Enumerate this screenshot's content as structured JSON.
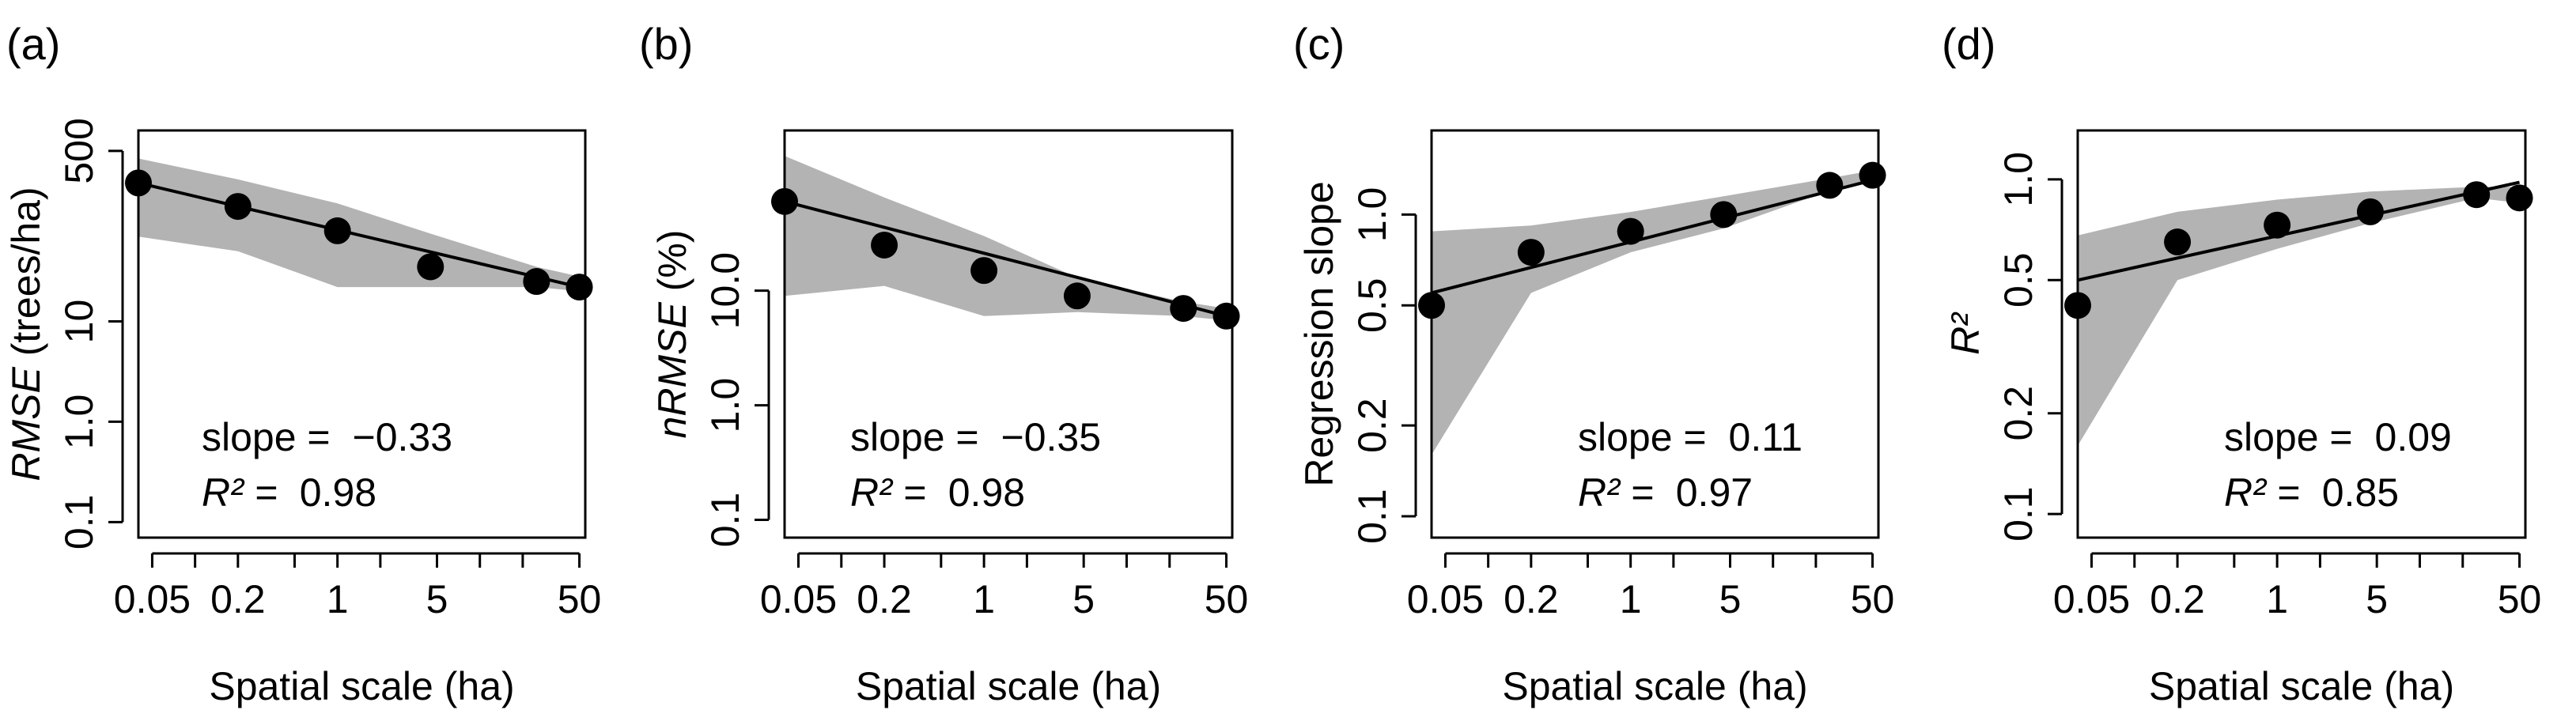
{
  "figure": {
    "xlabel": "Spatial scale (ha)",
    "xticks": [
      "0.05",
      "0.2",
      "1",
      "5",
      "50"
    ],
    "xticks_values": [
      0.05,
      0.2,
      1,
      5,
      50
    ]
  },
  "chart_data": [
    {
      "panel_label": "(a)",
      "type": "scatter",
      "log_x": true,
      "log_y": true,
      "ylabel_italic": "RMSE",
      "ylabel_rest": " (trees/ha)",
      "xlabel": "Spatial scale (ha)",
      "xlim": [
        0.04,
        55
      ],
      "ylim": [
        0.07,
        800
      ],
      "yticks": [
        "0.1",
        "1.0",
        "10",
        "500"
      ],
      "yticks_values": [
        0.1,
        1.0,
        10,
        500
      ],
      "x": [
        0.04,
        0.2,
        1,
        4.5,
        25,
        50
      ],
      "y": [
        240,
        140,
        80,
        35,
        25,
        22
      ],
      "band_upper": [
        420,
        260,
        150,
        75,
        35,
        28
      ],
      "band_lower": [
        70,
        50,
        22,
        22,
        22,
        20
      ],
      "fit_endpoints": [
        [
          0.04,
          240
        ],
        [
          50,
          22
        ]
      ],
      "slope_label": "slope = ",
      "slope": "−0.33",
      "r2_label": "R² = ",
      "r2": "0.98"
    },
    {
      "panel_label": "(b)",
      "type": "scatter",
      "log_x": true,
      "log_y": true,
      "ylabel_italic": "nRMSE",
      "ylabel_rest": " (%)",
      "xlabel": "Spatial scale (ha)",
      "xlim": [
        0.04,
        55
      ],
      "ylim": [
        0.07,
        250
      ],
      "yticks": [
        "0.1",
        "1.0",
        "10.0"
      ],
      "yticks_values": [
        0.1,
        1.0,
        10.0
      ],
      "x": [
        0.04,
        0.2,
        1,
        4.5,
        25,
        50
      ],
      "y": [
        60,
        25,
        15,
        9,
        7,
        6
      ],
      "band_upper": [
        150,
        65,
        30,
        13,
        8,
        7
      ],
      "band_lower": [
        9,
        11,
        6,
        6.5,
        6,
        5.5
      ],
      "fit_endpoints": [
        [
          0.04,
          60
        ],
        [
          50,
          6
        ]
      ],
      "slope_label": "slope = ",
      "slope": "−0.35",
      "r2_label": "R² = ",
      "r2": "0.98"
    },
    {
      "panel_label": "(c)",
      "type": "scatter",
      "log_x": true,
      "log_y": true,
      "ylabel": "Regression slope",
      "xlabel": "Spatial scale (ha)",
      "xlim": [
        0.04,
        55
      ],
      "ylim": [
        0.085,
        1.9
      ],
      "yticks": [
        "0.1",
        "0.2",
        "0.5",
        "1.0"
      ],
      "yticks_values": [
        0.1,
        0.2,
        0.5,
        1.0
      ],
      "x": [
        0.04,
        0.2,
        1,
        4.5,
        25,
        50
      ],
      "y": [
        0.5,
        0.75,
        0.88,
        1.0,
        1.25,
        1.35
      ],
      "band_upper": [
        0.88,
        0.92,
        1.02,
        1.15,
        1.32,
        1.4
      ],
      "band_lower": [
        0.16,
        0.55,
        0.75,
        0.9,
        1.2,
        1.3
      ],
      "fit_endpoints": [
        [
          0.04,
          0.55
        ],
        [
          50,
          1.3
        ]
      ],
      "slope_label": "slope = ",
      "slope": "0.11",
      "r2_label": "R² = ",
      "r2": "0.97"
    },
    {
      "panel_label": "(d)",
      "type": "scatter",
      "log_x": true,
      "log_y": true,
      "ylabel_italic": "R²",
      "xlabel": "Spatial scale (ha)",
      "xlim": [
        0.04,
        55
      ],
      "ylim": [
        0.085,
        1.4
      ],
      "yticks": [
        "0.1",
        "0.2",
        "0.5",
        "1.0"
      ],
      "yticks_values": [
        0.1,
        0.2,
        0.5,
        1.0
      ],
      "x": [
        0.04,
        0.2,
        1,
        4.5,
        25,
        50
      ],
      "y": [
        0.42,
        0.65,
        0.73,
        0.8,
        0.9,
        0.88
      ],
      "band_upper": [
        0.68,
        0.8,
        0.87,
        0.92,
        0.95,
        0.95
      ],
      "band_lower": [
        0.16,
        0.5,
        0.62,
        0.74,
        0.88,
        0.85
      ],
      "fit_endpoints": [
        [
          0.04,
          0.5
        ],
        [
          50,
          0.98
        ]
      ],
      "slope_label": "slope = ",
      "slope": "0.09",
      "r2_label": "R² = ",
      "r2": "0.85"
    }
  ]
}
